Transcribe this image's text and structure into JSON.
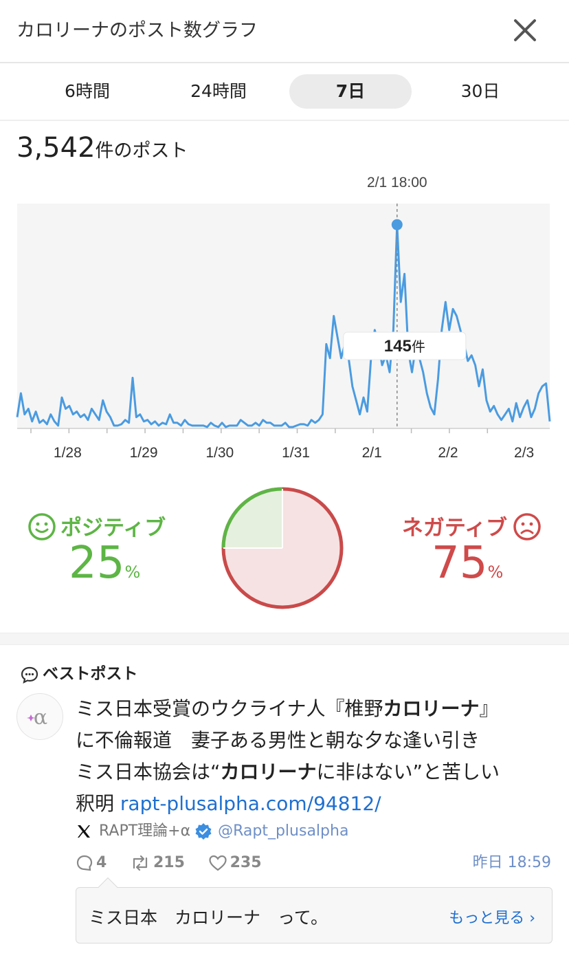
{
  "header": {
    "title": "カロリーナのポスト数グラフ"
  },
  "tabs": [
    {
      "label": "6時間",
      "active": false
    },
    {
      "label": "24時間",
      "active": false
    },
    {
      "label": "7日",
      "active": true
    },
    {
      "label": "30日",
      "active": false
    }
  ],
  "post_count": {
    "number": "3,542",
    "unit_text": "件のポスト"
  },
  "chart_data": {
    "type": "line",
    "title": "",
    "xlabel": "",
    "ylabel": "",
    "x_tick_labels": [
      "1/28",
      "1/29",
      "1/30",
      "1/31",
      "2/1",
      "2/2",
      "2/3"
    ],
    "ylim": [
      0,
      160
    ],
    "grid": false,
    "series_color": "#4a9be0",
    "highlight": {
      "x_label": "2/1 18:00",
      "value": 145,
      "value_text": "145",
      "unit": "件"
    },
    "series": [
      {
        "values": [
          8,
          25,
          10,
          14,
          5,
          12,
          4,
          6,
          3,
          10,
          5,
          2,
          22,
          14,
          16,
          10,
          12,
          8,
          10,
          6,
          14,
          10,
          6,
          20,
          12,
          8,
          2,
          2,
          3,
          6,
          4,
          36,
          8,
          10,
          5,
          6,
          3,
          5,
          2,
          4,
          3,
          10,
          4,
          4,
          2,
          6,
          3,
          2,
          2,
          2,
          2,
          1,
          4,
          2,
          1,
          4,
          1,
          2,
          2,
          2,
          6,
          4,
          2,
          2,
          4,
          2,
          6,
          4,
          4,
          2,
          2,
          2,
          4,
          1,
          1,
          2,
          3,
          3,
          2,
          6,
          4,
          6,
          10,
          60,
          50,
          80,
          65,
          50,
          60,
          50,
          30,
          20,
          10,
          22,
          12,
          50,
          70,
          60,
          45,
          52,
          40,
          70,
          145,
          90,
          110,
          55,
          40,
          58,
          50,
          40,
          25,
          15,
          10,
          35,
          70,
          90,
          70,
          85,
          80,
          70,
          60,
          48,
          52,
          45,
          30,
          42,
          20,
          12,
          16,
          10,
          6,
          10,
          14,
          5,
          18,
          8,
          15,
          20,
          8,
          14,
          25,
          30,
          32,
          5
        ]
      }
    ]
  },
  "sentiment": {
    "positive": {
      "label": "ポジティブ",
      "value": 25,
      "value_text": "25",
      "pct": "%",
      "color": "#5db545"
    },
    "negative": {
      "label": "ネガティブ",
      "value": 75,
      "value_text": "75",
      "pct": "%",
      "color": "#cf4a4a"
    }
  },
  "best_post": {
    "title": "ベストポスト",
    "text_line1_a": "ミス日本受賞のウクライナ人『椎野",
    "text_line1_b": "カロリーナ",
    "text_line1_c": "』",
    "text_line2": "に不倫報道　妻子ある男性と朝な夕な逢い引き",
    "text_line3_a": "ミス日本協会は“",
    "text_line3_b": "カロリーナ",
    "text_line3_c": "に非はない”と苦しい",
    "text_line4_a": "釈明 ",
    "link": "rapt-plusalpha.com/94812/",
    "author_name": "RAPT理論+α",
    "author_handle": "@Rapt_plusalpha",
    "replies": "4",
    "reposts": "215",
    "likes": "235",
    "time": "昨日 18:59",
    "reply_preview": "ミス日本　カロリーナ　って。",
    "more_label": "もっと見る ›"
  }
}
